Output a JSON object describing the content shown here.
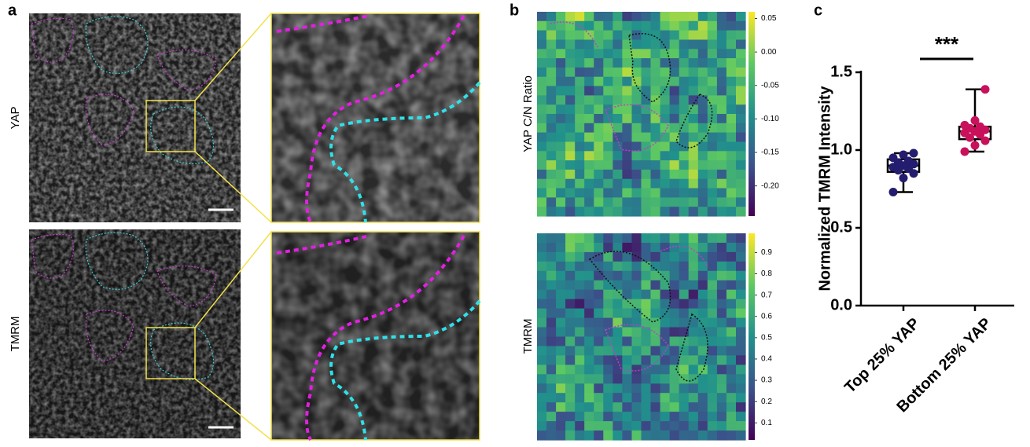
{
  "panels": {
    "a": {
      "label": "a",
      "rows": [
        "YAP",
        "TMRM"
      ]
    },
    "b": {
      "label": "b",
      "rows": [
        "YAP C/N Ratio",
        "TMRM"
      ],
      "colorbars": [
        {
          "clim": [
            -0.245,
            0.06
          ],
          "ticks": [
            0.05,
            {
              "value": 0,
              "label": "0.00"
            },
            -0.05,
            {
              "value": -0.1,
              "label": "-0.10"
            },
            -0.15,
            {
              "value": -0.2,
              "label": "-0.20"
            }
          ]
        },
        {
          "clim": [
            0.02,
            0.99
          ],
          "ticks": [
            0.1,
            0.2,
            0.3,
            0.4,
            0.5,
            0.6,
            0.7,
            0.8,
            0.9
          ]
        }
      ]
    },
    "c": {
      "label": "c"
    }
  },
  "chart_data": {
    "type": "box",
    "y_label": "Normalized TMRM Intensity",
    "annotation": "***",
    "categories": [
      "Top 25% YAP",
      "Bottom 25% YAP"
    ],
    "series": [
      {
        "name": "Top 25% YAP",
        "color": "#241c6e",
        "min": 0.73,
        "q1": 0.86,
        "median": 0.9,
        "q3": 0.94,
        "max": 0.98,
        "points": [
          0.73,
          0.82,
          0.85,
          0.87,
          0.88,
          0.89,
          0.9,
          0.91,
          0.92,
          0.93,
          0.95,
          0.97,
          0.98
        ]
      },
      {
        "name": "Bottom 25% YAP",
        "color": "#c8115a",
        "min": 0.99,
        "q1": 1.07,
        "median": 1.12,
        "q3": 1.15,
        "max": 1.39,
        "points": [
          0.99,
          1.03,
          1.06,
          1.08,
          1.1,
          1.11,
          1.12,
          1.13,
          1.14,
          1.15,
          1.16,
          1.19,
          1.39
        ]
      }
    ],
    "ylim": [
      0,
      1.5
    ],
    "yticks": [
      {
        "value": 0,
        "label": "0.0"
      },
      0.5,
      {
        "value": 1,
        "label": "1.0"
      },
      1.5
    ]
  }
}
